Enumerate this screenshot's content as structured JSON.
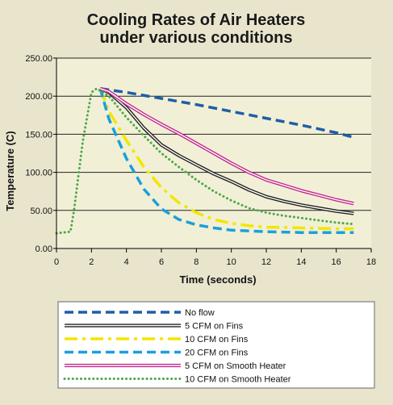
{
  "chart_data": {
    "type": "line",
    "title_lines": [
      "Cooling Rates of Air Heaters",
      "under various conditions"
    ],
    "xlabel": "Time (seconds)",
    "ylabel": "Temperature (C)",
    "xlim": [
      0,
      18
    ],
    "ylim": [
      0,
      250
    ],
    "x_ticks": [
      "0",
      "2",
      "4",
      "6",
      "8",
      "10",
      "12",
      "14",
      "16",
      "18"
    ],
    "y_ticks": [
      "0.00",
      "50.00",
      "100.00",
      "150.00",
      "200.00",
      "250.00"
    ],
    "grid": "horizontal",
    "legend_position": "bottom",
    "series": [
      {
        "name": "No flow",
        "color": "#1f5ea8",
        "style": "dashed",
        "points": [
          [
            2.5,
            210
          ],
          [
            4,
            205
          ],
          [
            6,
            197
          ],
          [
            8,
            189
          ],
          [
            10,
            180
          ],
          [
            12,
            171
          ],
          [
            14,
            162
          ],
          [
            16,
            152
          ],
          [
            17,
            146
          ]
        ]
      },
      {
        "name": "5 CFM on Fins",
        "color": "#222222",
        "style": "double",
        "points": [
          [
            2.5,
            210
          ],
          [
            3,
            205
          ],
          [
            4,
            185
          ],
          [
            5,
            158
          ],
          [
            6,
            136
          ],
          [
            7,
            122
          ],
          [
            8,
            110
          ],
          [
            9,
            98
          ],
          [
            10,
            88
          ],
          [
            11,
            77
          ],
          [
            12,
            68
          ],
          [
            13,
            62
          ],
          [
            14,
            57
          ],
          [
            15,
            53
          ],
          [
            16,
            49
          ],
          [
            17,
            46
          ]
        ]
      },
      {
        "name": "10 CFM on Fins",
        "color": "#f2e600",
        "style": "dashdot",
        "points": [
          [
            2.5,
            210
          ],
          [
            3,
            180
          ],
          [
            4,
            142
          ],
          [
            5,
            107
          ],
          [
            6,
            80
          ],
          [
            7,
            60
          ],
          [
            8,
            47
          ],
          [
            9,
            38
          ],
          [
            10,
            33
          ],
          [
            11,
            30
          ],
          [
            12,
            28
          ],
          [
            14,
            27
          ],
          [
            16,
            26
          ],
          [
            17,
            26
          ]
        ]
      },
      {
        "name": "20 CFM on Fins",
        "color": "#1aa0dc",
        "style": "dashed",
        "points": [
          [
            2.5,
            210
          ],
          [
            3,
            170
          ],
          [
            4,
            118
          ],
          [
            5,
            78
          ],
          [
            6,
            52
          ],
          [
            7,
            38
          ],
          [
            8,
            31
          ],
          [
            9,
            27
          ],
          [
            10,
            24
          ],
          [
            12,
            22
          ],
          [
            14,
            21
          ],
          [
            17,
            21
          ]
        ]
      },
      {
        "name": "5 CFM on Smooth Heater",
        "color": "#c2288e",
        "style": "double",
        "points": [
          [
            2.5,
            210
          ],
          [
            3,
            206
          ],
          [
            4,
            190
          ],
          [
            5,
            176
          ],
          [
            6,
            163
          ],
          [
            7,
            151
          ],
          [
            8,
            138
          ],
          [
            9,
            125
          ],
          [
            10,
            112
          ],
          [
            11,
            100
          ],
          [
            12,
            90
          ],
          [
            13,
            83
          ],
          [
            14,
            76
          ],
          [
            15,
            70
          ],
          [
            16,
            64
          ],
          [
            17,
            59
          ]
        ]
      },
      {
        "name": "10 CFM on Smooth Heater",
        "color": "#4aa84a",
        "style": "dotted",
        "points": [
          [
            0,
            20
          ],
          [
            0.8,
            22
          ],
          [
            1,
            50
          ],
          [
            1.5,
            140
          ],
          [
            2,
            205
          ],
          [
            2.3,
            210
          ],
          [
            3,
            200
          ],
          [
            4,
            172
          ],
          [
            5,
            148
          ],
          [
            6,
            125
          ],
          [
            7,
            107
          ],
          [
            8,
            90
          ],
          [
            9,
            75
          ],
          [
            10,
            63
          ],
          [
            11,
            53
          ],
          [
            12,
            47
          ],
          [
            13,
            43
          ],
          [
            14,
            40
          ],
          [
            15,
            37
          ],
          [
            16,
            34
          ],
          [
            17,
            32
          ]
        ]
      }
    ]
  }
}
